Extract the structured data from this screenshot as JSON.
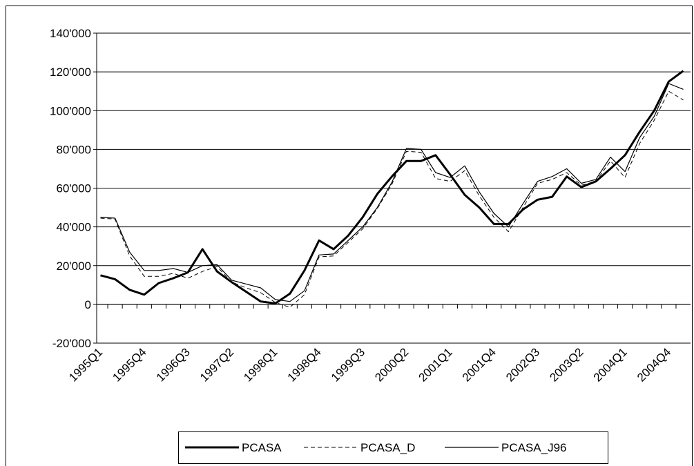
{
  "chart_data": {
    "type": "line",
    "categories": [
      "1995Q1",
      null,
      null,
      "1995Q4",
      null,
      null,
      "1996Q3",
      null,
      null,
      "1997Q2",
      null,
      null,
      "1998Q1",
      null,
      null,
      "1998Q4",
      null,
      null,
      "1999Q3",
      null,
      null,
      "2000Q2",
      null,
      null,
      "2001Q1",
      null,
      null,
      "2001Q4",
      null,
      null,
      "2002Q3",
      null,
      null,
      "2003Q2",
      null,
      null,
      "2004Q1",
      null,
      null,
      "2004Q4",
      null
    ],
    "series": [
      {
        "name": "PCASA",
        "color": "#000000",
        "style": "thick",
        "values": [
          15000,
          13000,
          7500,
          5000,
          11000,
          13500,
          16500,
          28500,
          17000,
          11500,
          6500,
          1500,
          500,
          5500,
          17500,
          33000,
          28500,
          35500,
          45000,
          57000,
          66000,
          74000,
          74000,
          77000,
          67000,
          56500,
          50000,
          41500,
          41500,
          49000,
          54000,
          55500,
          66000,
          60500,
          63500,
          70000,
          77000,
          89000,
          100000,
          115000,
          120500
        ]
      },
      {
        "name": "PCASA_D",
        "color": "#000000",
        "style": "dashed",
        "values": [
          44500,
          44000,
          25000,
          14500,
          14500,
          16000,
          13500,
          17000,
          19500,
          11500,
          8500,
          6000,
          1000,
          -1500,
          5000,
          24500,
          25000,
          32000,
          39000,
          49500,
          62000,
          79000,
          78500,
          65000,
          63500,
          69000,
          56000,
          45000,
          37500,
          50000,
          62500,
          64500,
          68000,
          61500,
          63500,
          74000,
          65500,
          83000,
          95000,
          110000,
          105500
        ]
      },
      {
        "name": "PCASA_J96",
        "color": "#000000",
        "style": "thin",
        "values": [
          45000,
          44500,
          27000,
          17500,
          17500,
          18500,
          16500,
          20000,
          20500,
          12500,
          10500,
          8500,
          2500,
          1500,
          7000,
          25500,
          26000,
          33000,
          40000,
          50000,
          63000,
          80500,
          80000,
          68000,
          65500,
          71500,
          58000,
          47000,
          40000,
          52000,
          63500,
          66000,
          70000,
          62500,
          64500,
          76000,
          68500,
          86000,
          97000,
          114000,
          111000
        ]
      }
    ],
    "ylim": [
      -20000,
      140000
    ],
    "yticks": [
      {
        "value": -20000,
        "label": "-20'000"
      },
      0,
      {
        "value": 20000,
        "label": "20'000"
      },
      {
        "value": 40000,
        "label": "40'000"
      },
      {
        "value": 60000,
        "label": "60'000"
      },
      {
        "value": 80000,
        "label": "80'000"
      },
      {
        "value": 100000,
        "label": "100'000"
      },
      {
        "value": 120000,
        "label": "120'000"
      },
      {
        "value": 140000,
        "label": "140'000"
      }
    ],
    "grid": true,
    "legend": "bottom"
  }
}
